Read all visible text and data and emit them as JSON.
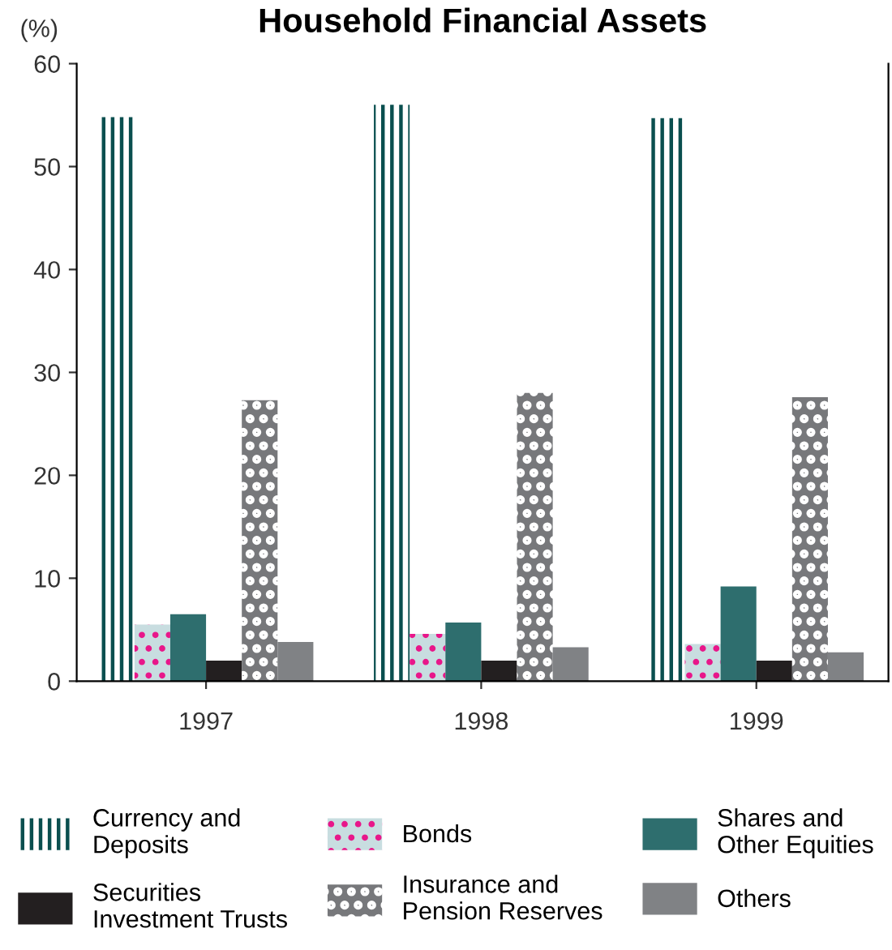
{
  "chart_data": {
    "type": "bar",
    "title": "Household Financial Assets",
    "ylabel": "(%)",
    "categories": [
      "1997",
      "1998",
      "1999"
    ],
    "series": [
      {
        "name": "Currency and\nDeposits",
        "color": "#0a4f4f",
        "values": [
          54.8,
          56.0,
          54.7
        ]
      },
      {
        "name": "Bonds",
        "color": "#e8178a",
        "values": [
          5.5,
          4.6,
          3.6
        ]
      },
      {
        "name": "Shares and\nOther Equities",
        "color": "#2e6e6e",
        "values": [
          6.5,
          5.7,
          9.2
        ]
      },
      {
        "name": "Securities\nInvestment Trusts",
        "color": "#231f20",
        "values": [
          2.0,
          2.0,
          2.0
        ]
      },
      {
        "name": "Insurance and\nPension Reserves",
        "color": "#77787b",
        "values": [
          27.3,
          28.0,
          27.6
        ]
      },
      {
        "name": "Others",
        "color": "#808285",
        "values": [
          3.8,
          3.3,
          2.8
        ]
      }
    ],
    "ylim": [
      0,
      60
    ],
    "yticks": [
      0,
      10,
      20,
      30,
      40,
      50,
      60
    ],
    "grid": false,
    "legend": "bottom"
  }
}
